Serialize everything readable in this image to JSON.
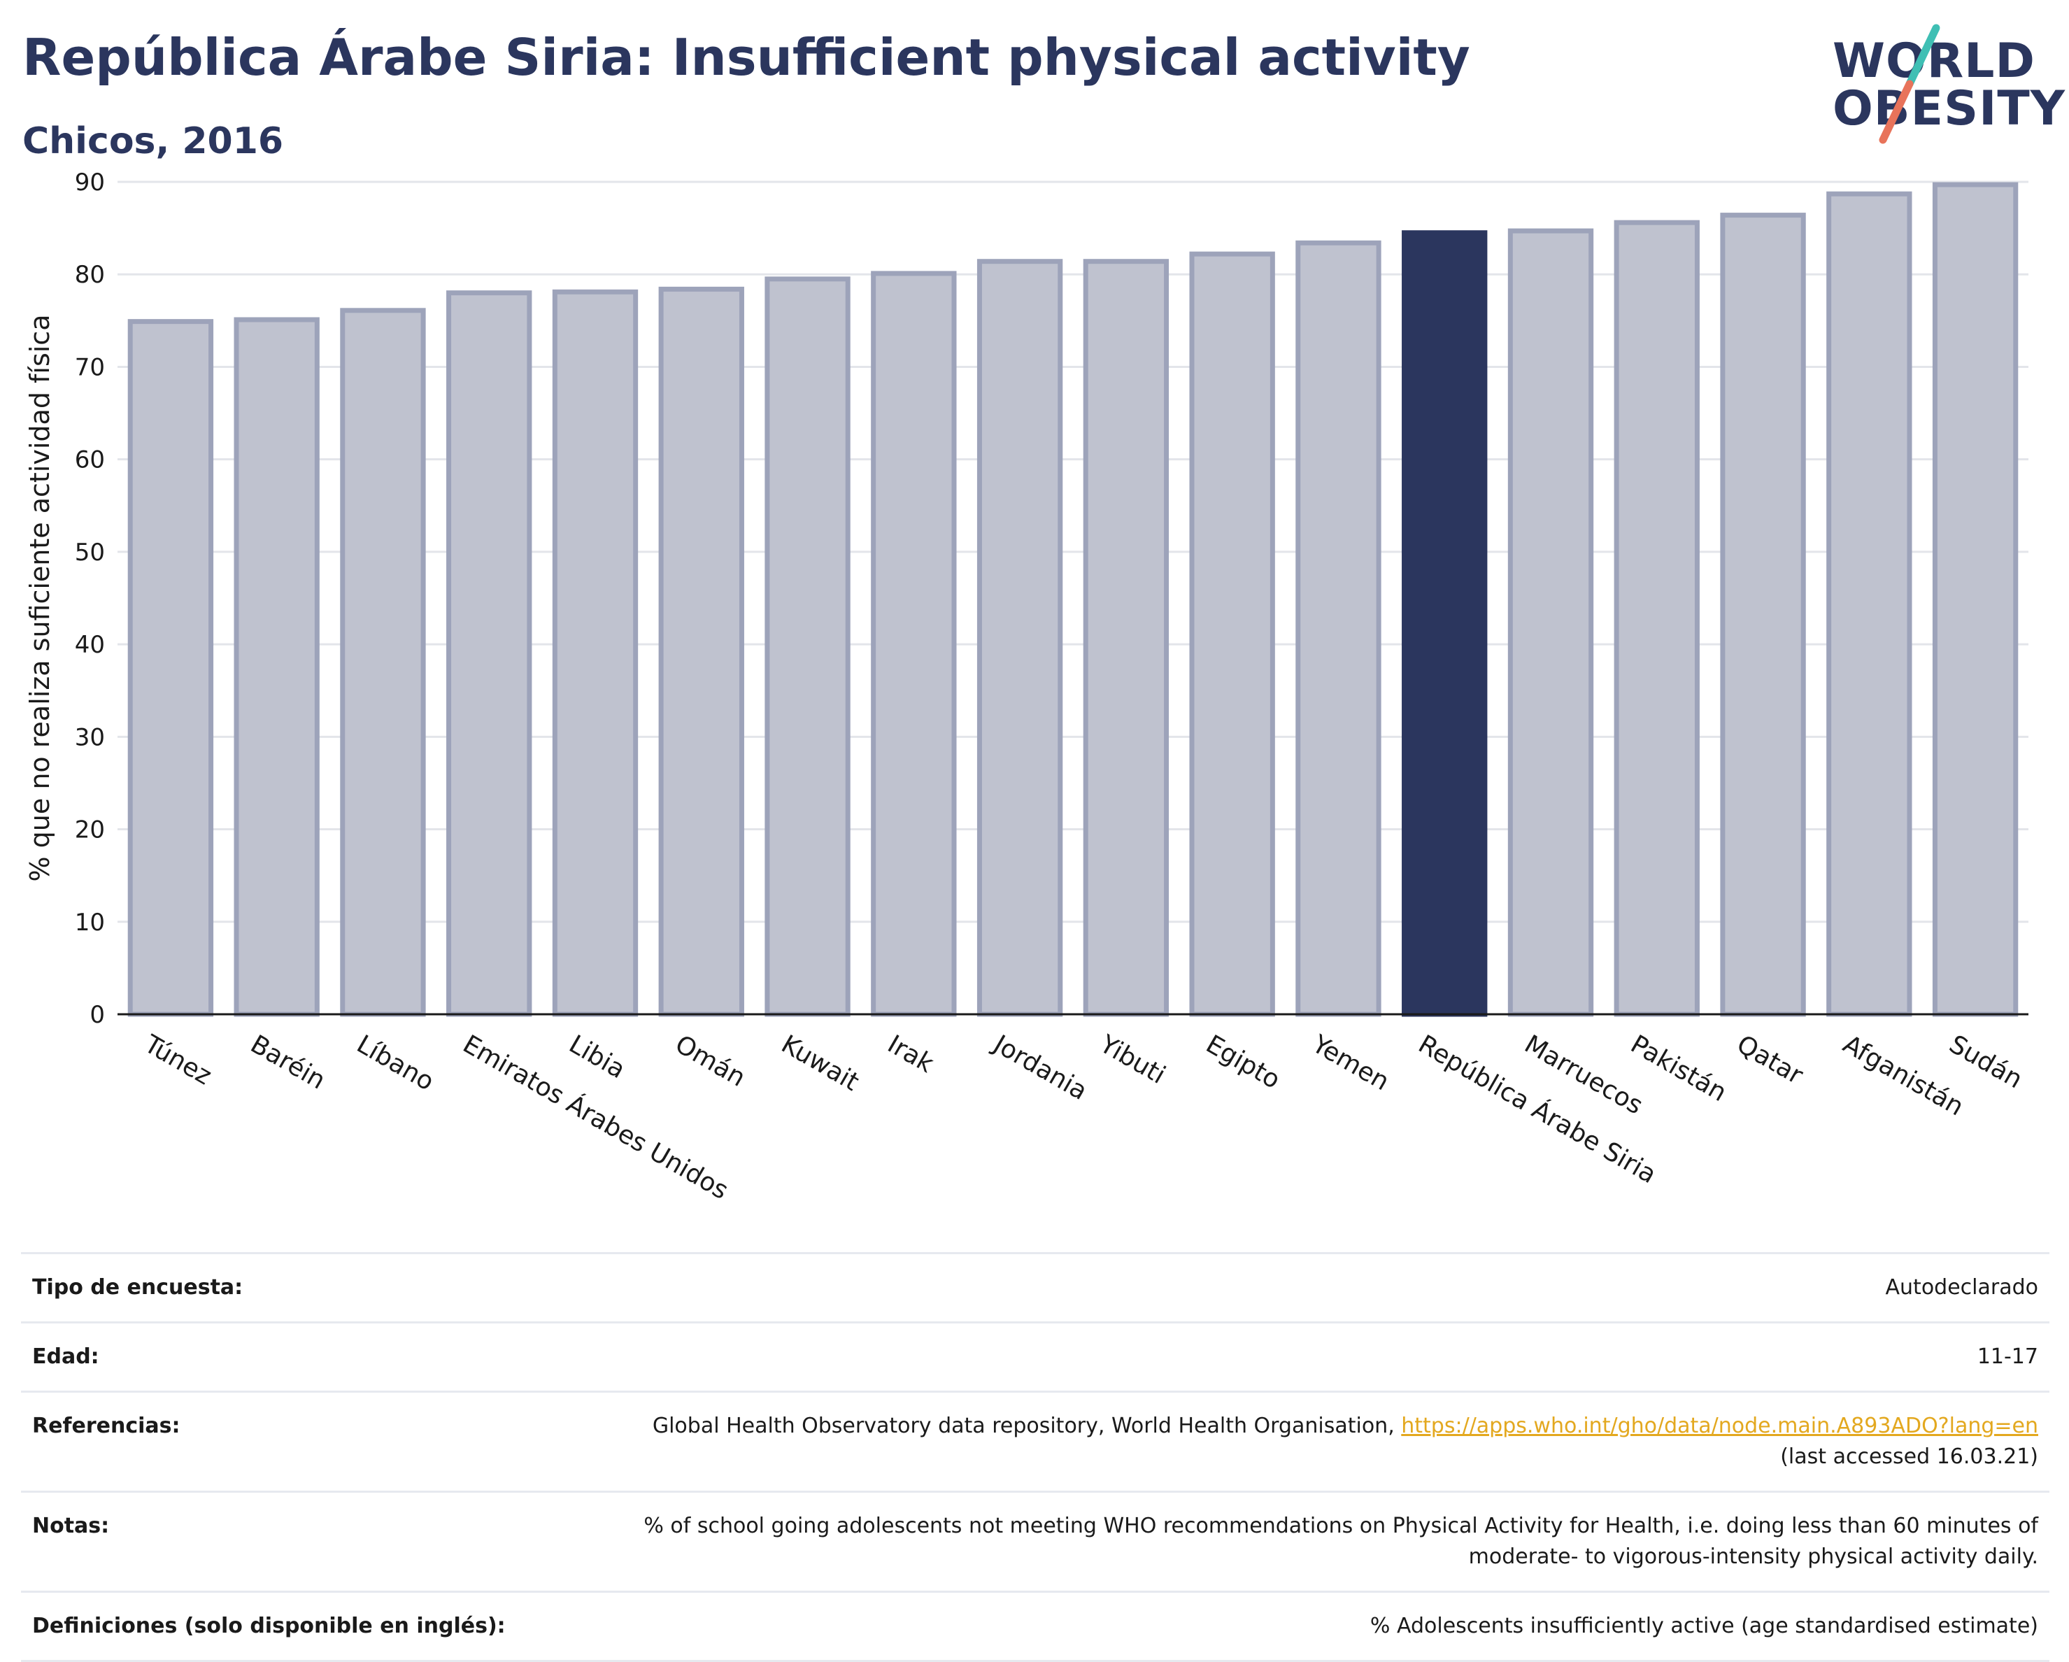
{
  "header": {
    "title": "República Árabe Siria: Insufficient physical activity",
    "subtitle": "Chicos, 2016"
  },
  "logo": {
    "line1": "WORLD",
    "line2": "OBESITY",
    "colors": {
      "text": "#2b365e",
      "slash_top": "#3fbfb4",
      "slash_bottom": "#e8735a"
    }
  },
  "chart_data": {
    "type": "bar",
    "title": "",
    "xlabel": "",
    "ylabel": "% que no realiza suficiente actividad física",
    "ylim": [
      0,
      90
    ],
    "yticks": [
      0,
      10,
      20,
      30,
      40,
      50,
      60,
      70,
      80,
      90
    ],
    "grid": true,
    "categories": [
      "Túnez",
      "Baréin",
      "Líbano",
      "Emiratos Árabes Unidos",
      "Libia",
      "Omán",
      "Kuwait",
      "Irak",
      "Jordania",
      "Yibuti",
      "Egipto",
      "Yemen",
      "República Árabe Siria",
      "Marruecos",
      "Pakistán",
      "Qatar",
      "Afganistán",
      "Sudán"
    ],
    "values": [
      74.9,
      75.1,
      76.1,
      78.0,
      78.1,
      78.4,
      79.5,
      80.1,
      81.4,
      81.4,
      82.2,
      83.4,
      84.5,
      84.7,
      85.6,
      86.4,
      88.7,
      89.7
    ],
    "highlight": "República Árabe Siria",
    "colors": {
      "bar": "#bfc2cf",
      "bar_border": "#9da3ba",
      "highlight": "#2b365e",
      "grid": "#e3e5ea",
      "axis": "#1a1a1a"
    }
  },
  "info": {
    "survey_type": {
      "label": "Tipo de encuesta:",
      "value": "Autodeclarado"
    },
    "age": {
      "label": "Edad:",
      "value": "11-17"
    },
    "references": {
      "label": "Referencias:",
      "text": "Global Health Observatory data repository, World Health Organisation, ",
      "link": "https://apps.who.int/gho/data/node.main.A893ADO?lang=en",
      "accessed": "(last accessed 16.03.21)"
    },
    "notes": {
      "label": "Notas:",
      "line1": "% of school going adolescents not meeting WHO recommendations on Physical Activity for Health, i.e. doing less than 60 minutes of",
      "line2": "moderate- to vigorous-intensity physical activity daily."
    },
    "definitions": {
      "label": "Definiciones (solo disponible en inglés):",
      "value": "% Adolescents insufficiently active (age standardised estimate)"
    }
  }
}
